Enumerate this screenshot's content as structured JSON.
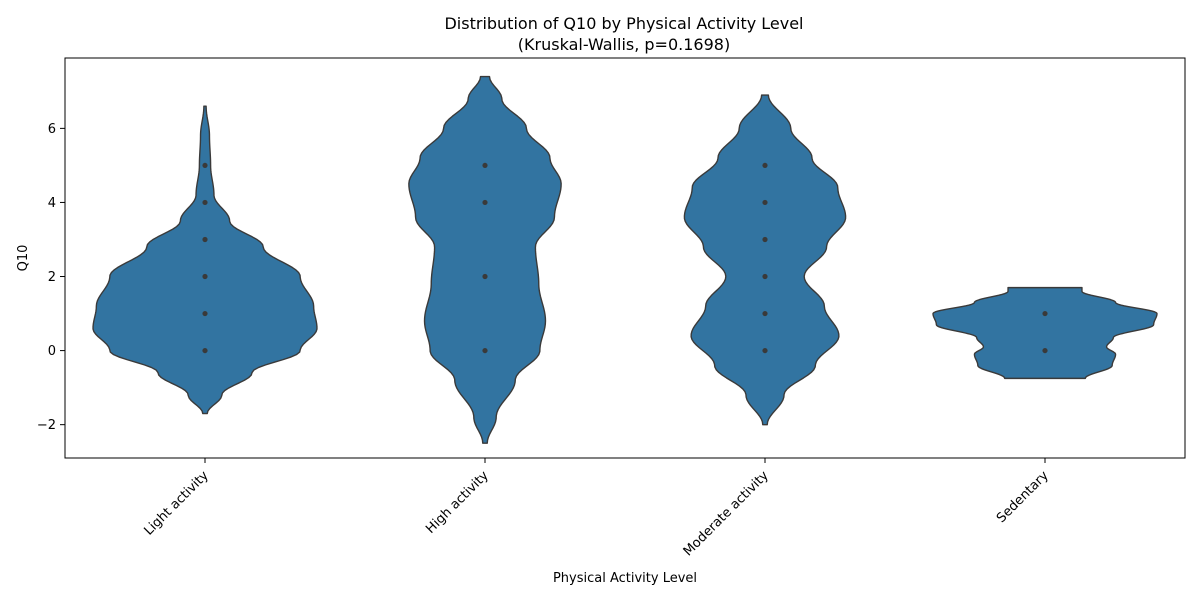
{
  "chart_data": {
    "type": "violin",
    "title": "Distribution of Q10 by Physical Activity Level",
    "subtitle": "(Kruskal-Wallis, p=0.1698)",
    "xlabel": "Physical Activity Level",
    "ylabel": "Q10",
    "ylim": [
      -2.9,
      7.9
    ],
    "yticks": [
      -2,
      0,
      2,
      4,
      6
    ],
    "ytick_labels": [
      "−2",
      "0",
      "2",
      "4",
      "6"
    ],
    "grid": false,
    "categories": [
      "Light activity",
      "High activity",
      "Moderate activity",
      "Sedentary"
    ],
    "violin_color": "#3274a1",
    "edge_color": "#3a3a3a",
    "series": [
      {
        "category": "Light activity",
        "y_range": [
          -1.7,
          6.6
        ],
        "density_profile": [
          [
            -1.7,
            0.02
          ],
          [
            -1.2,
            0.15
          ],
          [
            -0.6,
            0.42
          ],
          [
            0.0,
            0.85
          ],
          [
            0.6,
            1.0
          ],
          [
            1.2,
            0.97
          ],
          [
            2.0,
            0.85
          ],
          [
            2.8,
            0.52
          ],
          [
            3.5,
            0.22
          ],
          [
            4.2,
            0.08
          ],
          [
            5.0,
            0.05
          ],
          [
            5.8,
            0.04
          ],
          [
            6.6,
            0.01
          ]
        ],
        "points": [
          0,
          1,
          2,
          3,
          4,
          5
        ]
      },
      {
        "category": "High activity",
        "y_range": [
          -2.5,
          7.4
        ],
        "density_profile": [
          [
            -2.5,
            0.02
          ],
          [
            -1.8,
            0.1
          ],
          [
            -0.8,
            0.27
          ],
          [
            0.0,
            0.49
          ],
          [
            0.8,
            0.54
          ],
          [
            1.8,
            0.48
          ],
          [
            2.8,
            0.45
          ],
          [
            3.6,
            0.62
          ],
          [
            4.5,
            0.68
          ],
          [
            5.2,
            0.58
          ],
          [
            6.0,
            0.37
          ],
          [
            6.8,
            0.15
          ],
          [
            7.4,
            0.04
          ]
        ],
        "points": [
          0,
          2,
          4,
          5
        ]
      },
      {
        "category": "Moderate activity",
        "y_range": [
          -2.0,
          6.9
        ],
        "density_profile": [
          [
            -2.0,
            0.02
          ],
          [
            -1.2,
            0.17
          ],
          [
            -0.4,
            0.45
          ],
          [
            0.4,
            0.66
          ],
          [
            1.2,
            0.53
          ],
          [
            2.0,
            0.35
          ],
          [
            2.8,
            0.55
          ],
          [
            3.6,
            0.72
          ],
          [
            4.4,
            0.65
          ],
          [
            5.2,
            0.42
          ],
          [
            6.0,
            0.23
          ],
          [
            6.9,
            0.03
          ]
        ],
        "points": [
          0,
          1,
          2,
          3,
          4,
          5
        ]
      },
      {
        "category": "Sedentary",
        "y_range": [
          -0.75,
          1.7
        ],
        "density_profile": [
          [
            -0.75,
            0.36
          ],
          [
            -0.4,
            0.6
          ],
          [
            -0.1,
            0.63
          ],
          [
            0.1,
            0.55
          ],
          [
            0.35,
            0.61
          ],
          [
            0.7,
            0.97
          ],
          [
            1.0,
            1.0
          ],
          [
            1.3,
            0.63
          ],
          [
            1.6,
            0.33
          ],
          [
            1.7,
            0.33
          ]
        ],
        "points": [
          0,
          1
        ]
      }
    ]
  }
}
